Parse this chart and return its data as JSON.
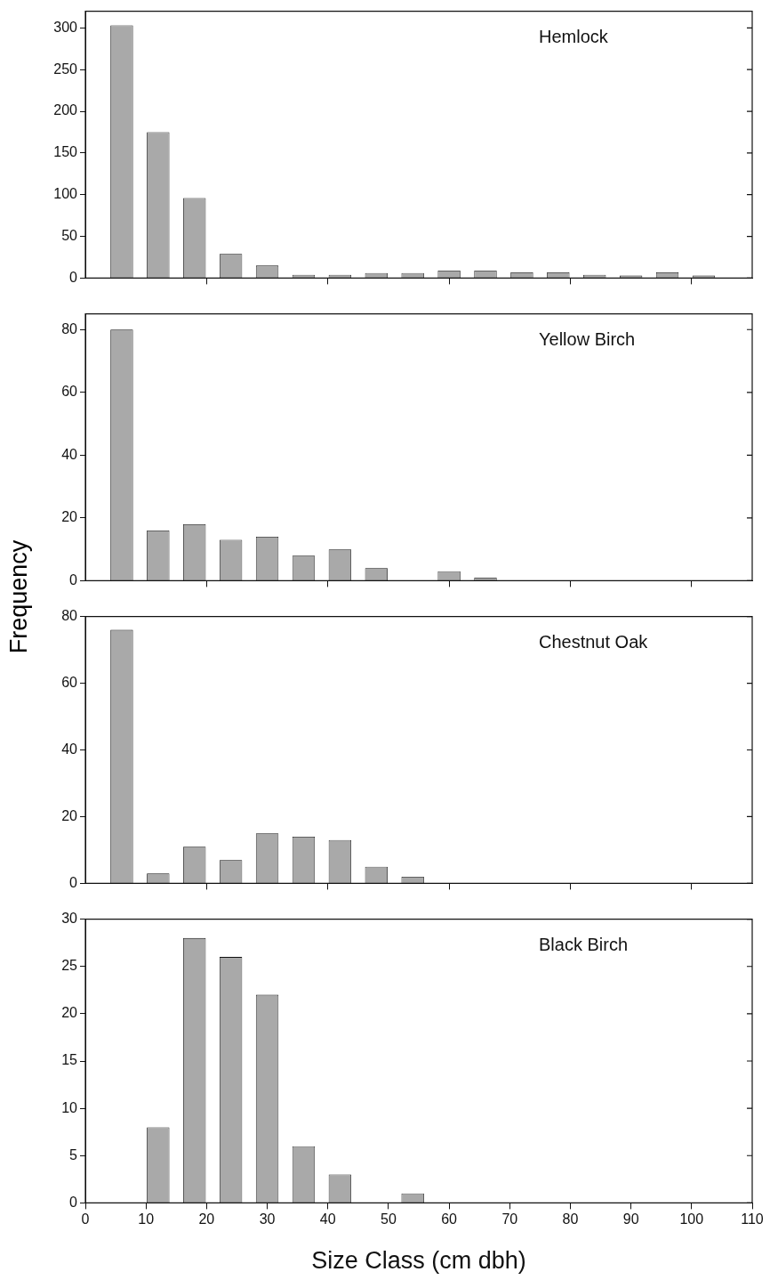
{
  "chart_data": [
    {
      "type": "bar",
      "title": "Hemlock",
      "x": [
        6,
        12,
        18,
        24,
        30,
        36,
        42,
        48,
        54,
        60,
        66,
        72,
        78,
        84,
        90,
        96,
        102
      ],
      "values": [
        303,
        175,
        96,
        29,
        15,
        4,
        4,
        6,
        6,
        9,
        9,
        7,
        7,
        4,
        3,
        7,
        3
      ],
      "color": "#a9a9a9",
      "xlim": [
        0,
        110
      ],
      "xticks": [
        20,
        40,
        60,
        80,
        100
      ],
      "ylim": [
        0,
        320
      ],
      "yticks": [
        0,
        50,
        100,
        150,
        200,
        250,
        300
      ],
      "tick_labels": "y"
    },
    {
      "type": "bar",
      "title": "Yellow Birch",
      "ylabel": "Frequency",
      "x": [
        6,
        12,
        18,
        24,
        30,
        36,
        42,
        48,
        60,
        66
      ],
      "values": [
        80,
        16,
        18,
        13,
        14,
        8,
        10,
        4,
        3,
        1
      ],
      "color": "#a9a9a9",
      "xlim": [
        0,
        110
      ],
      "xticks": [
        20,
        40,
        60,
        80,
        100
      ],
      "ylim": [
        0,
        85
      ],
      "yticks": [
        0,
        20,
        40,
        60,
        80
      ],
      "tick_labels": "y"
    },
    {
      "type": "bar",
      "title": "Chestnut Oak",
      "x": [
        6,
        12,
        18,
        24,
        30,
        36,
        42,
        48,
        54
      ],
      "values": [
        76,
        3,
        11,
        7,
        15,
        14,
        13,
        5,
        2
      ],
      "color": "#a9a9a9",
      "xlim": [
        0,
        110
      ],
      "xticks": [
        20,
        40,
        60,
        80,
        100
      ],
      "ylim": [
        0,
        80
      ],
      "yticks": [
        0,
        20,
        40,
        60,
        80
      ],
      "tick_labels": "y"
    },
    {
      "type": "bar",
      "title": "Black Birch",
      "xlabel": "Size Class (cm dbh)",
      "x": [
        12,
        18,
        24,
        30,
        36,
        42,
        54
      ],
      "values": [
        8,
        28,
        26,
        22,
        6,
        3,
        1
      ],
      "color": "#a9a9a9",
      "xlim": [
        0,
        110
      ],
      "xticks": [
        0,
        10,
        20,
        30,
        40,
        50,
        60,
        70,
        80,
        90,
        100,
        110
      ],
      "ylim": [
        0,
        30
      ],
      "yticks": [
        0,
        5,
        10,
        15,
        20,
        25,
        30
      ]
    }
  ]
}
